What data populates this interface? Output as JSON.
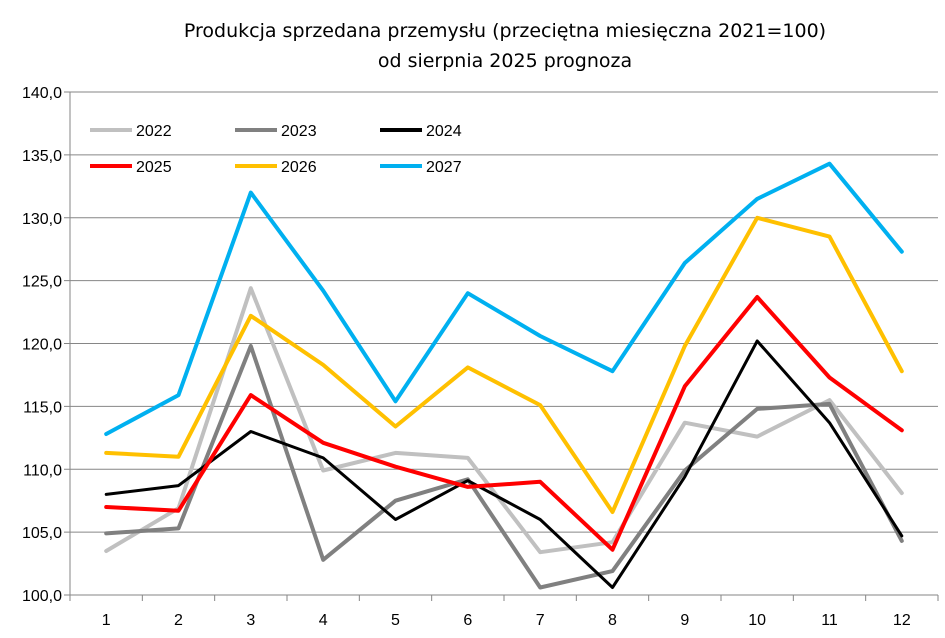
{
  "chart_data": {
    "type": "line",
    "title": "Produkcja sprzedana przemysłu (przeciętna miesięczna 2021=100)",
    "subtitle": "od sierpnia 2025 prognoza",
    "categories": [
      "1",
      "2",
      "3",
      "4",
      "5",
      "6",
      "7",
      "8",
      "9",
      "10",
      "11",
      "12"
    ],
    "y_ticks": [
      "100,0",
      "105,0",
      "110,0",
      "115,0",
      "120,0",
      "125,0",
      "130,0",
      "135,0",
      "140,0"
    ],
    "ylim": [
      100,
      140
    ],
    "grid": "horizontal",
    "legend_placement": "top-left",
    "series": [
      {
        "name": "2022",
        "color": "#c0c0c0",
        "values": [
          103.5,
          106.9,
          124.4,
          109.9,
          111.3,
          110.9,
          103.4,
          104.2,
          113.7,
          112.6,
          115.5,
          108.1
        ]
      },
      {
        "name": "2023",
        "color": "#808080",
        "values": [
          104.9,
          105.3,
          119.8,
          102.8,
          107.5,
          109.2,
          100.6,
          101.9,
          109.9,
          114.8,
          115.2,
          104.3
        ]
      },
      {
        "name": "2024",
        "color": "#000000",
        "values": [
          108.0,
          108.7,
          113.0,
          110.9,
          106.0,
          109.1,
          106.0,
          100.6,
          109.4,
          120.2,
          113.7,
          104.7
        ]
      },
      {
        "name": "2025",
        "color": "#ff0000",
        "values": [
          107.0,
          106.7,
          115.9,
          112.1,
          110.2,
          108.6,
          109.0,
          103.6,
          116.6,
          123.7,
          117.3,
          113.1
        ]
      },
      {
        "name": "2026",
        "color": "#ffc000",
        "values": [
          111.3,
          111.0,
          122.2,
          118.3,
          113.4,
          118.1,
          115.1,
          106.6,
          119.8,
          130.0,
          128.5,
          117.8
        ]
      },
      {
        "name": "2027",
        "color": "#00b0f0",
        "values": [
          112.8,
          115.9,
          132.0,
          124.2,
          115.4,
          124.0,
          120.6,
          117.8,
          126.4,
          131.5,
          134.3,
          127.3
        ]
      }
    ]
  }
}
